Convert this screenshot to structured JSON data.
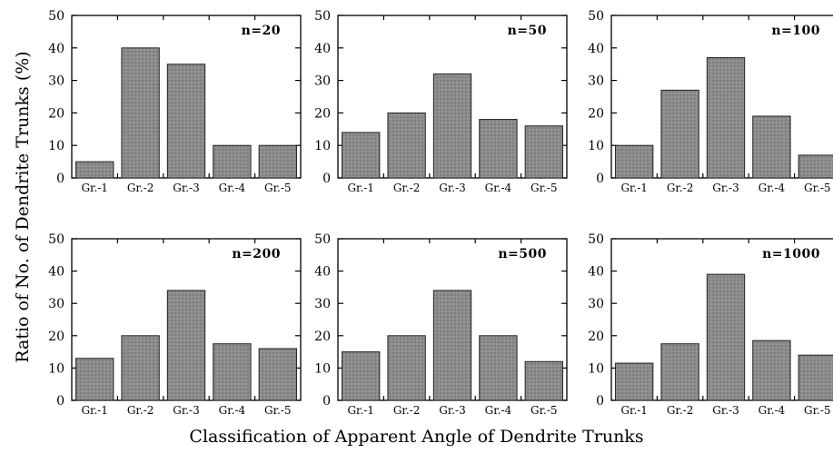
{
  "figure": {
    "ylabel": "Ratio of No. of Dendrite Trunks  (%)",
    "xlabel": "Classification of Apparent Angle of Dendrite Trunks"
  },
  "colors": {
    "bar_fill": "#8c8c8c",
    "bar_stroke": "#222222",
    "axis": "#000000"
  },
  "chart_data": [
    {
      "type": "bar",
      "annotation": "n=20",
      "categories": [
        "Gr.-1",
        "Gr.-2",
        "Gr.-3",
        "Gr.-4",
        "Gr.-5"
      ],
      "values": [
        5,
        40,
        35,
        10,
        10
      ],
      "ylim": [
        0,
        50
      ],
      "yticks": [
        0,
        10,
        20,
        30,
        40,
        50
      ],
      "xlabel": "",
      "ylabel": "Ratio of No. of Dendrite Trunks  (%)"
    },
    {
      "type": "bar",
      "annotation": "n=50",
      "categories": [
        "Gr.-1",
        "Gr.-2",
        "Gr.-3",
        "Gr.-4",
        "Gr.-5"
      ],
      "values": [
        14,
        20,
        32,
        18,
        16
      ],
      "ylim": [
        0,
        50
      ],
      "yticks": [
        0,
        10,
        20,
        30,
        40,
        50
      ],
      "xlabel": "",
      "ylabel": ""
    },
    {
      "type": "bar",
      "annotation": "n=100",
      "categories": [
        "Gr.-1",
        "Gr.-2",
        "Gr.-3",
        "Gr.-4",
        "Gr.-5"
      ],
      "values": [
        10,
        27,
        37,
        19,
        7
      ],
      "ylim": [
        0,
        50
      ],
      "yticks": [
        0,
        10,
        20,
        30,
        40,
        50
      ],
      "xlabel": "",
      "ylabel": ""
    },
    {
      "type": "bar",
      "annotation": "n=200",
      "categories": [
        "Gr.-1",
        "Gr.-2",
        "Gr.-3",
        "Gr.-4",
        "Gr.-5"
      ],
      "values": [
        13,
        20,
        34,
        17.5,
        16
      ],
      "ylim": [
        0,
        50
      ],
      "yticks": [
        0,
        10,
        20,
        30,
        40,
        50
      ],
      "xlabel": "",
      "ylabel": "Ratio of No. of Dendrite Trunks  (%)"
    },
    {
      "type": "bar",
      "annotation": "n=500",
      "categories": [
        "Gr.-1",
        "Gr.-2",
        "Gr.-3",
        "Gr.-4",
        "Gr.-5"
      ],
      "values": [
        15,
        20,
        34,
        20,
        12
      ],
      "ylim": [
        0,
        50
      ],
      "yticks": [
        0,
        10,
        20,
        30,
        40,
        50
      ],
      "xlabel": "Classification of Apparent Angle of Dendrite Trunks",
      "ylabel": ""
    },
    {
      "type": "bar",
      "annotation": "n=1000",
      "categories": [
        "Gr.-1",
        "Gr.-2",
        "Gr.-3",
        "Gr.-4",
        "Gr.-5"
      ],
      "values": [
        11.5,
        17.5,
        39,
        18.5,
        14
      ],
      "ylim": [
        0,
        50
      ],
      "yticks": [
        0,
        10,
        20,
        30,
        40,
        50
      ],
      "xlabel": "",
      "ylabel": ""
    }
  ]
}
